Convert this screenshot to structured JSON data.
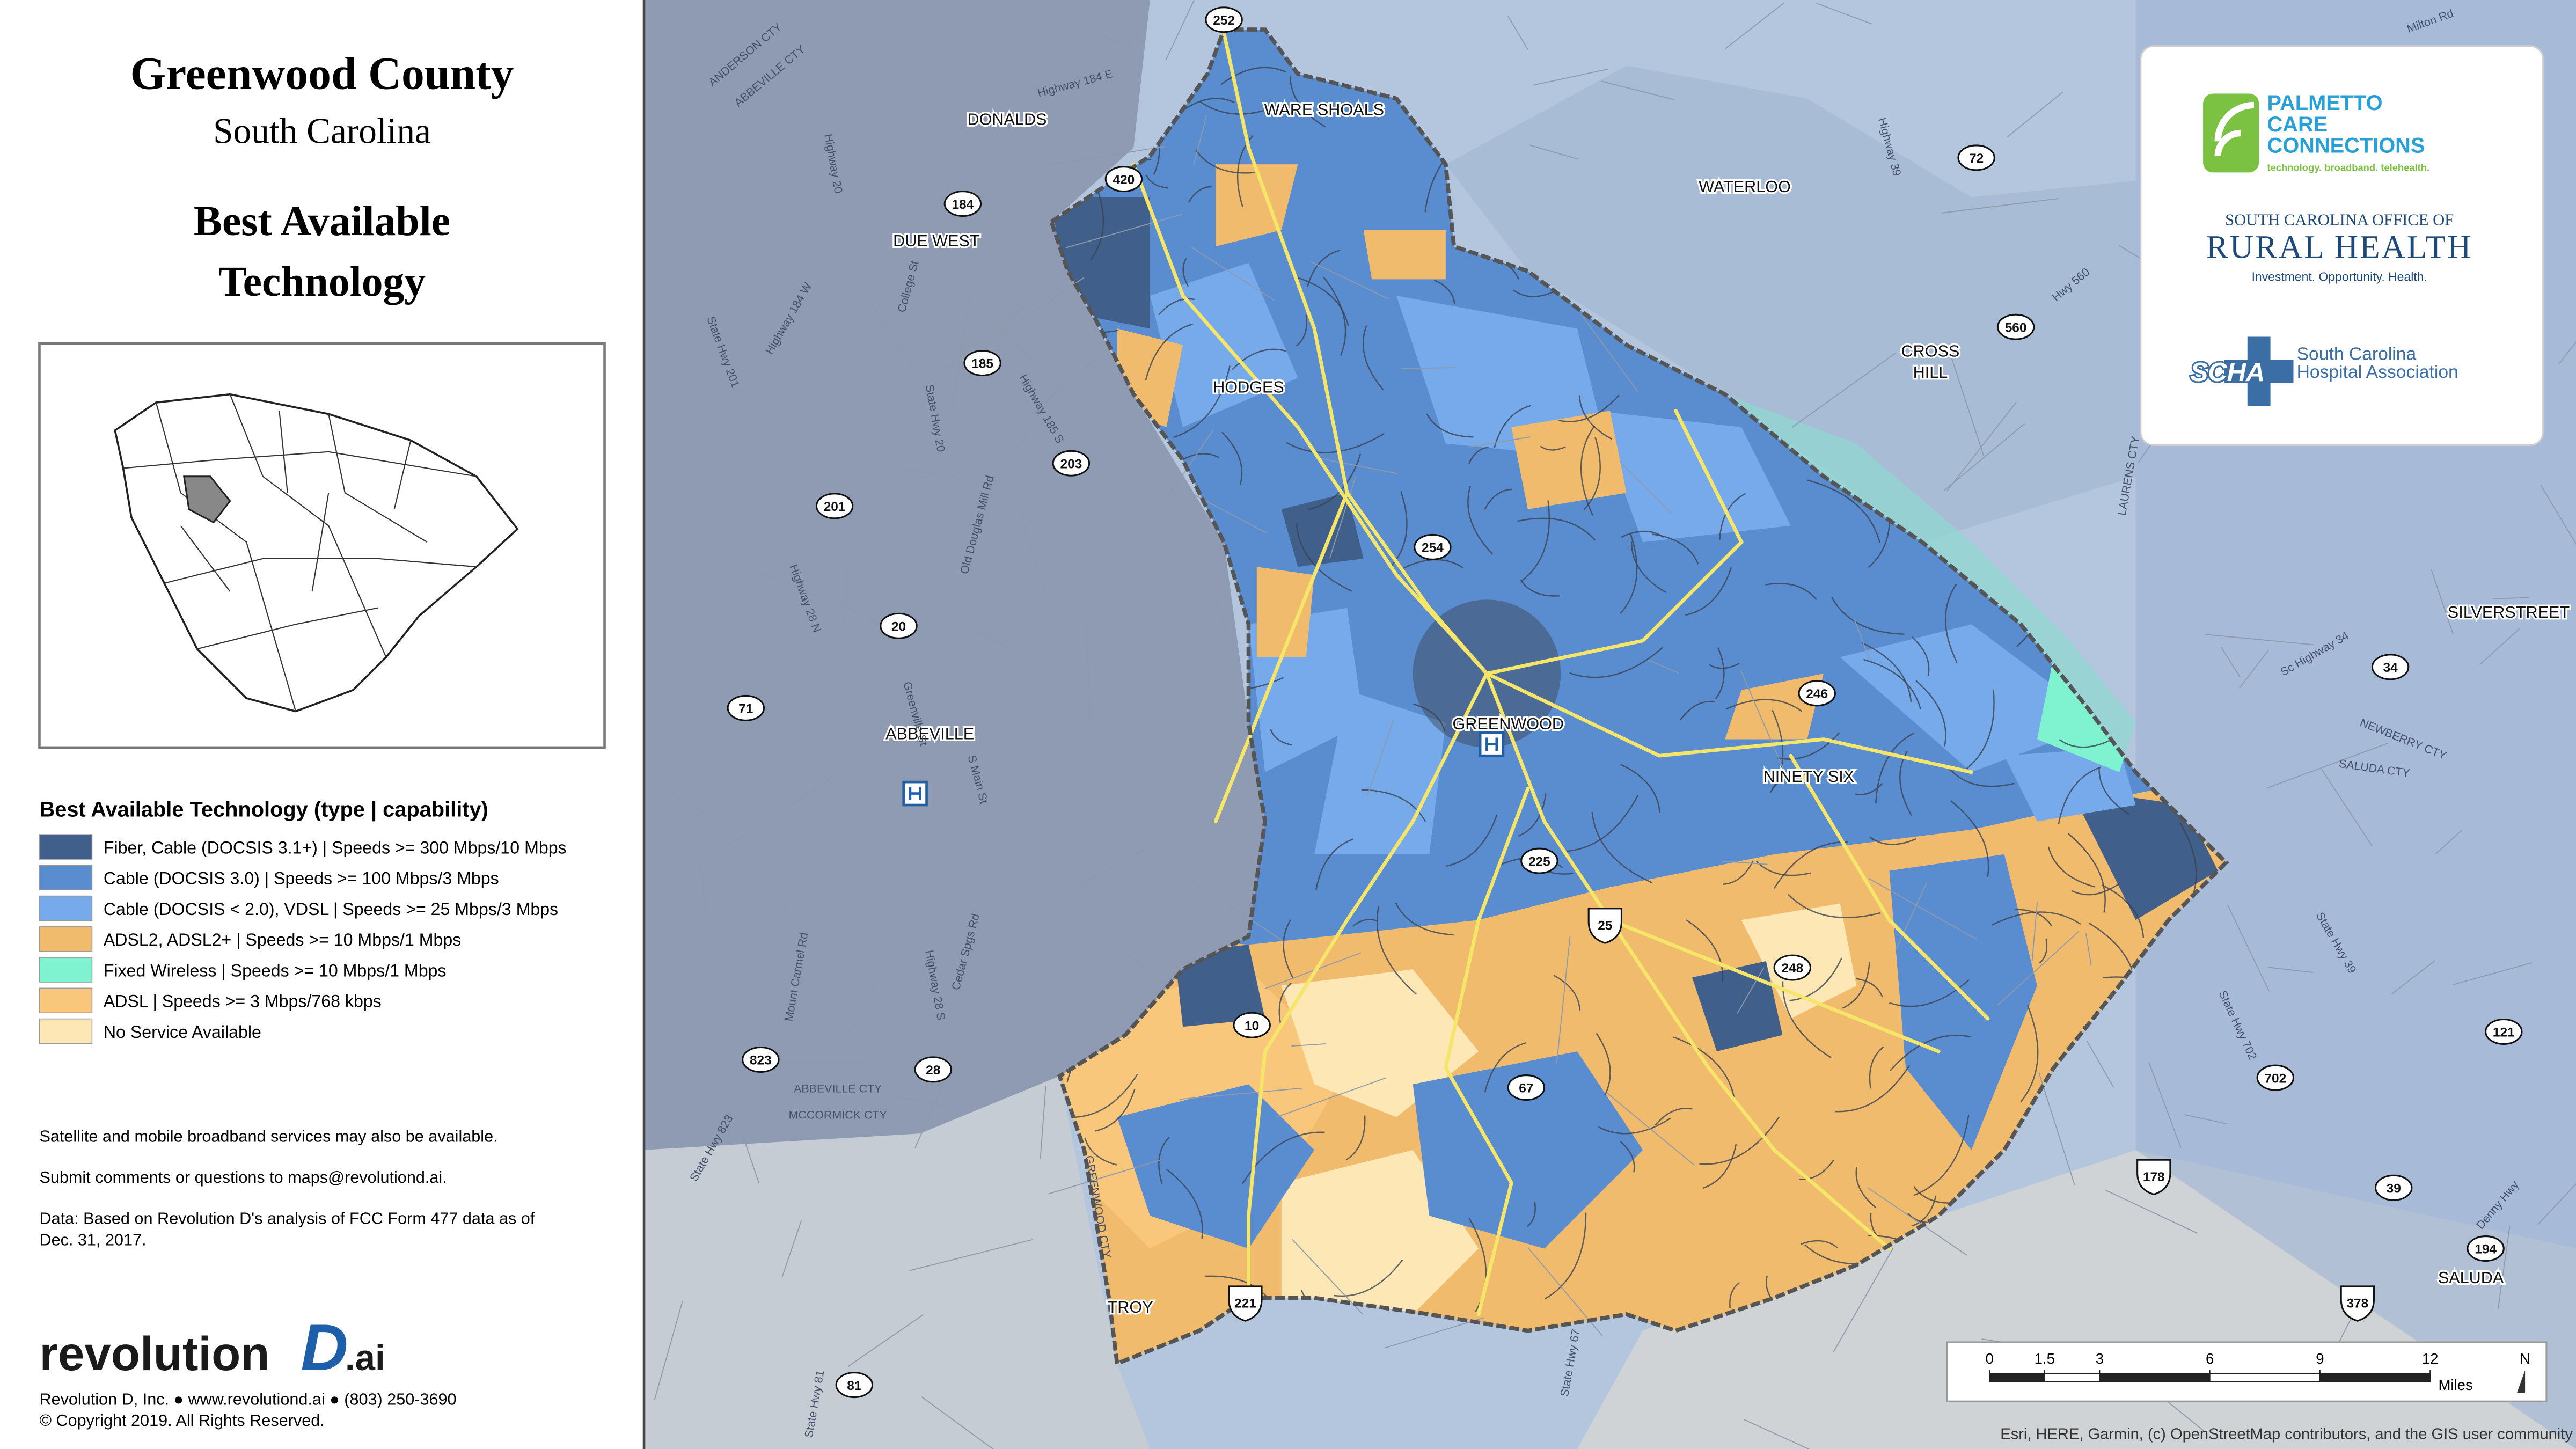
{
  "header": {
    "title": "Greenwood County",
    "subtitle": "South Carolina",
    "heading": [
      "Best Available",
      "Technology"
    ]
  },
  "legend": {
    "title": "Best Available Technology (type | capability)",
    "items": [
      {
        "label": "Fiber, Cable (DOCSIS 3.1+) | Speeds >= 300 Mbps/10 Mbps",
        "color": "#415f8b"
      },
      {
        "label": "Cable (DOCSIS 3.0) | Speeds >= 100 Mbps/3 Mbps",
        "color": "#5a8cd0"
      },
      {
        "label": "Cable (DOCSIS < 2.0), VDSL | Speeds >= 25 Mbps/3 Mbps",
        "color": "#76aaea"
      },
      {
        "label": "ADSL2, ADSL2+ | Speeds >= 10 Mbps/1 Mbps",
        "color": "#f0bb6c"
      },
      {
        "label": "Fixed Wireless | Speeds >= 10 Mbps/1 Mbps",
        "color": "#7ff3d0"
      },
      {
        "label": "ADSL | Speeds >= 3 Mbps/768 kbps",
        "color": "#f9c77c"
      },
      {
        "label": "No Service Available",
        "color": "#fde7b4"
      }
    ]
  },
  "notes": [
    [
      "Satellite and mobile broadband services may also be available."
    ],
    [
      "Submit comments or questions to maps@revolutiond.ai."
    ],
    [
      "Data: Based on Revolution D's analysis of FCC Form 477 data as of",
      "Dec. 31, 2017."
    ]
  ],
  "footer": {
    "brand": "revolution",
    "brand_mark": "D",
    "brand_suffix": ".ai",
    "contact": "Revolution D, Inc. ● www.revolutiond.ai ● (803) 250-3690",
    "copyright": "© Copyright 2019. All Rights Reserved."
  },
  "logos": {
    "palmetto": [
      "PALMETTO",
      "CARE",
      "CONNECTIONS"
    ],
    "palmetto_tagline": "technology. broadband. telehealth.",
    "rural_top": "SOUTH CAROLINA OFFICE OF",
    "rural_name": "RURAL HEALTH",
    "rural_tagline": "Investment. Opportunity. Health.",
    "scha": "SCHA",
    "scha_name": [
      "South Carolina",
      "Hospital Association"
    ]
  },
  "map": {
    "places": [
      {
        "lines": [
          "DONALDS"
        ]
      },
      {
        "lines": [
          "WARE SHOALS"
        ]
      },
      {
        "lines": [
          "WATERLOO"
        ]
      },
      {
        "lines": [
          "DUE WEST"
        ]
      },
      {
        "lines": [
          "HODGES"
        ]
      },
      {
        "lines": [
          "CROSS",
          "HILL"
        ]
      },
      {
        "lines": [
          "GREENWOOD"
        ]
      },
      {
        "lines": [
          "ABBEVILLE"
        ]
      },
      {
        "lines": [
          "NINETY SIX"
        ]
      },
      {
        "lines": [
          "SILVERSTREET"
        ]
      },
      {
        "lines": [
          "SALUDA"
        ]
      },
      {
        "lines": [
          "TROY"
        ]
      }
    ],
    "routes": [
      "252",
      "420",
      "184",
      "185",
      "203",
      "201",
      "254",
      "20",
      "71",
      "246",
      "225",
      "25",
      "248",
      "10",
      "67",
      "823",
      "28",
      "178",
      "221",
      "81",
      "72",
      "560",
      "34",
      "121",
      "702",
      "39",
      "194",
      "378"
    ],
    "road_labels": [
      "Highway 184 E",
      "ANDERSON CTY",
      "ABBEVILLE CTY",
      "College St",
      "Highway 184 W",
      "State Hwy 201",
      "Highway 20",
      "State Hwy 20",
      "Highway 185 S",
      "Old Douglas Mill Rd",
      "Highway 28 N",
      "Greenville St",
      "S Main St",
      "Mount Carmel Rd",
      "Cedar Spgs Rd",
      "Highway 28 S",
      "ABBEVILLE CTY",
      "MCCORMICK CTY",
      "State Hwy 823",
      "State Hwy 81",
      "Highway 39",
      "Hwy 560",
      "LAURENS CTY",
      "Sc Highway 34",
      "NEWBERRY CTY",
      "SALUDA CTY",
      "State Hwy 39",
      "State Hwy 702",
      "Milton Rd",
      "Denny Hwy",
      "GREENWOOD CTY",
      "State Hwy 67"
    ],
    "scale_bar": {
      "ticks": [
        0,
        1.5,
        3,
        6,
        9,
        12
      ],
      "unit": "Miles",
      "north": "N"
    },
    "attribution": "Esri, HERE, Garmin, (c) OpenStreetMap contributors, and the GIS user community"
  }
}
